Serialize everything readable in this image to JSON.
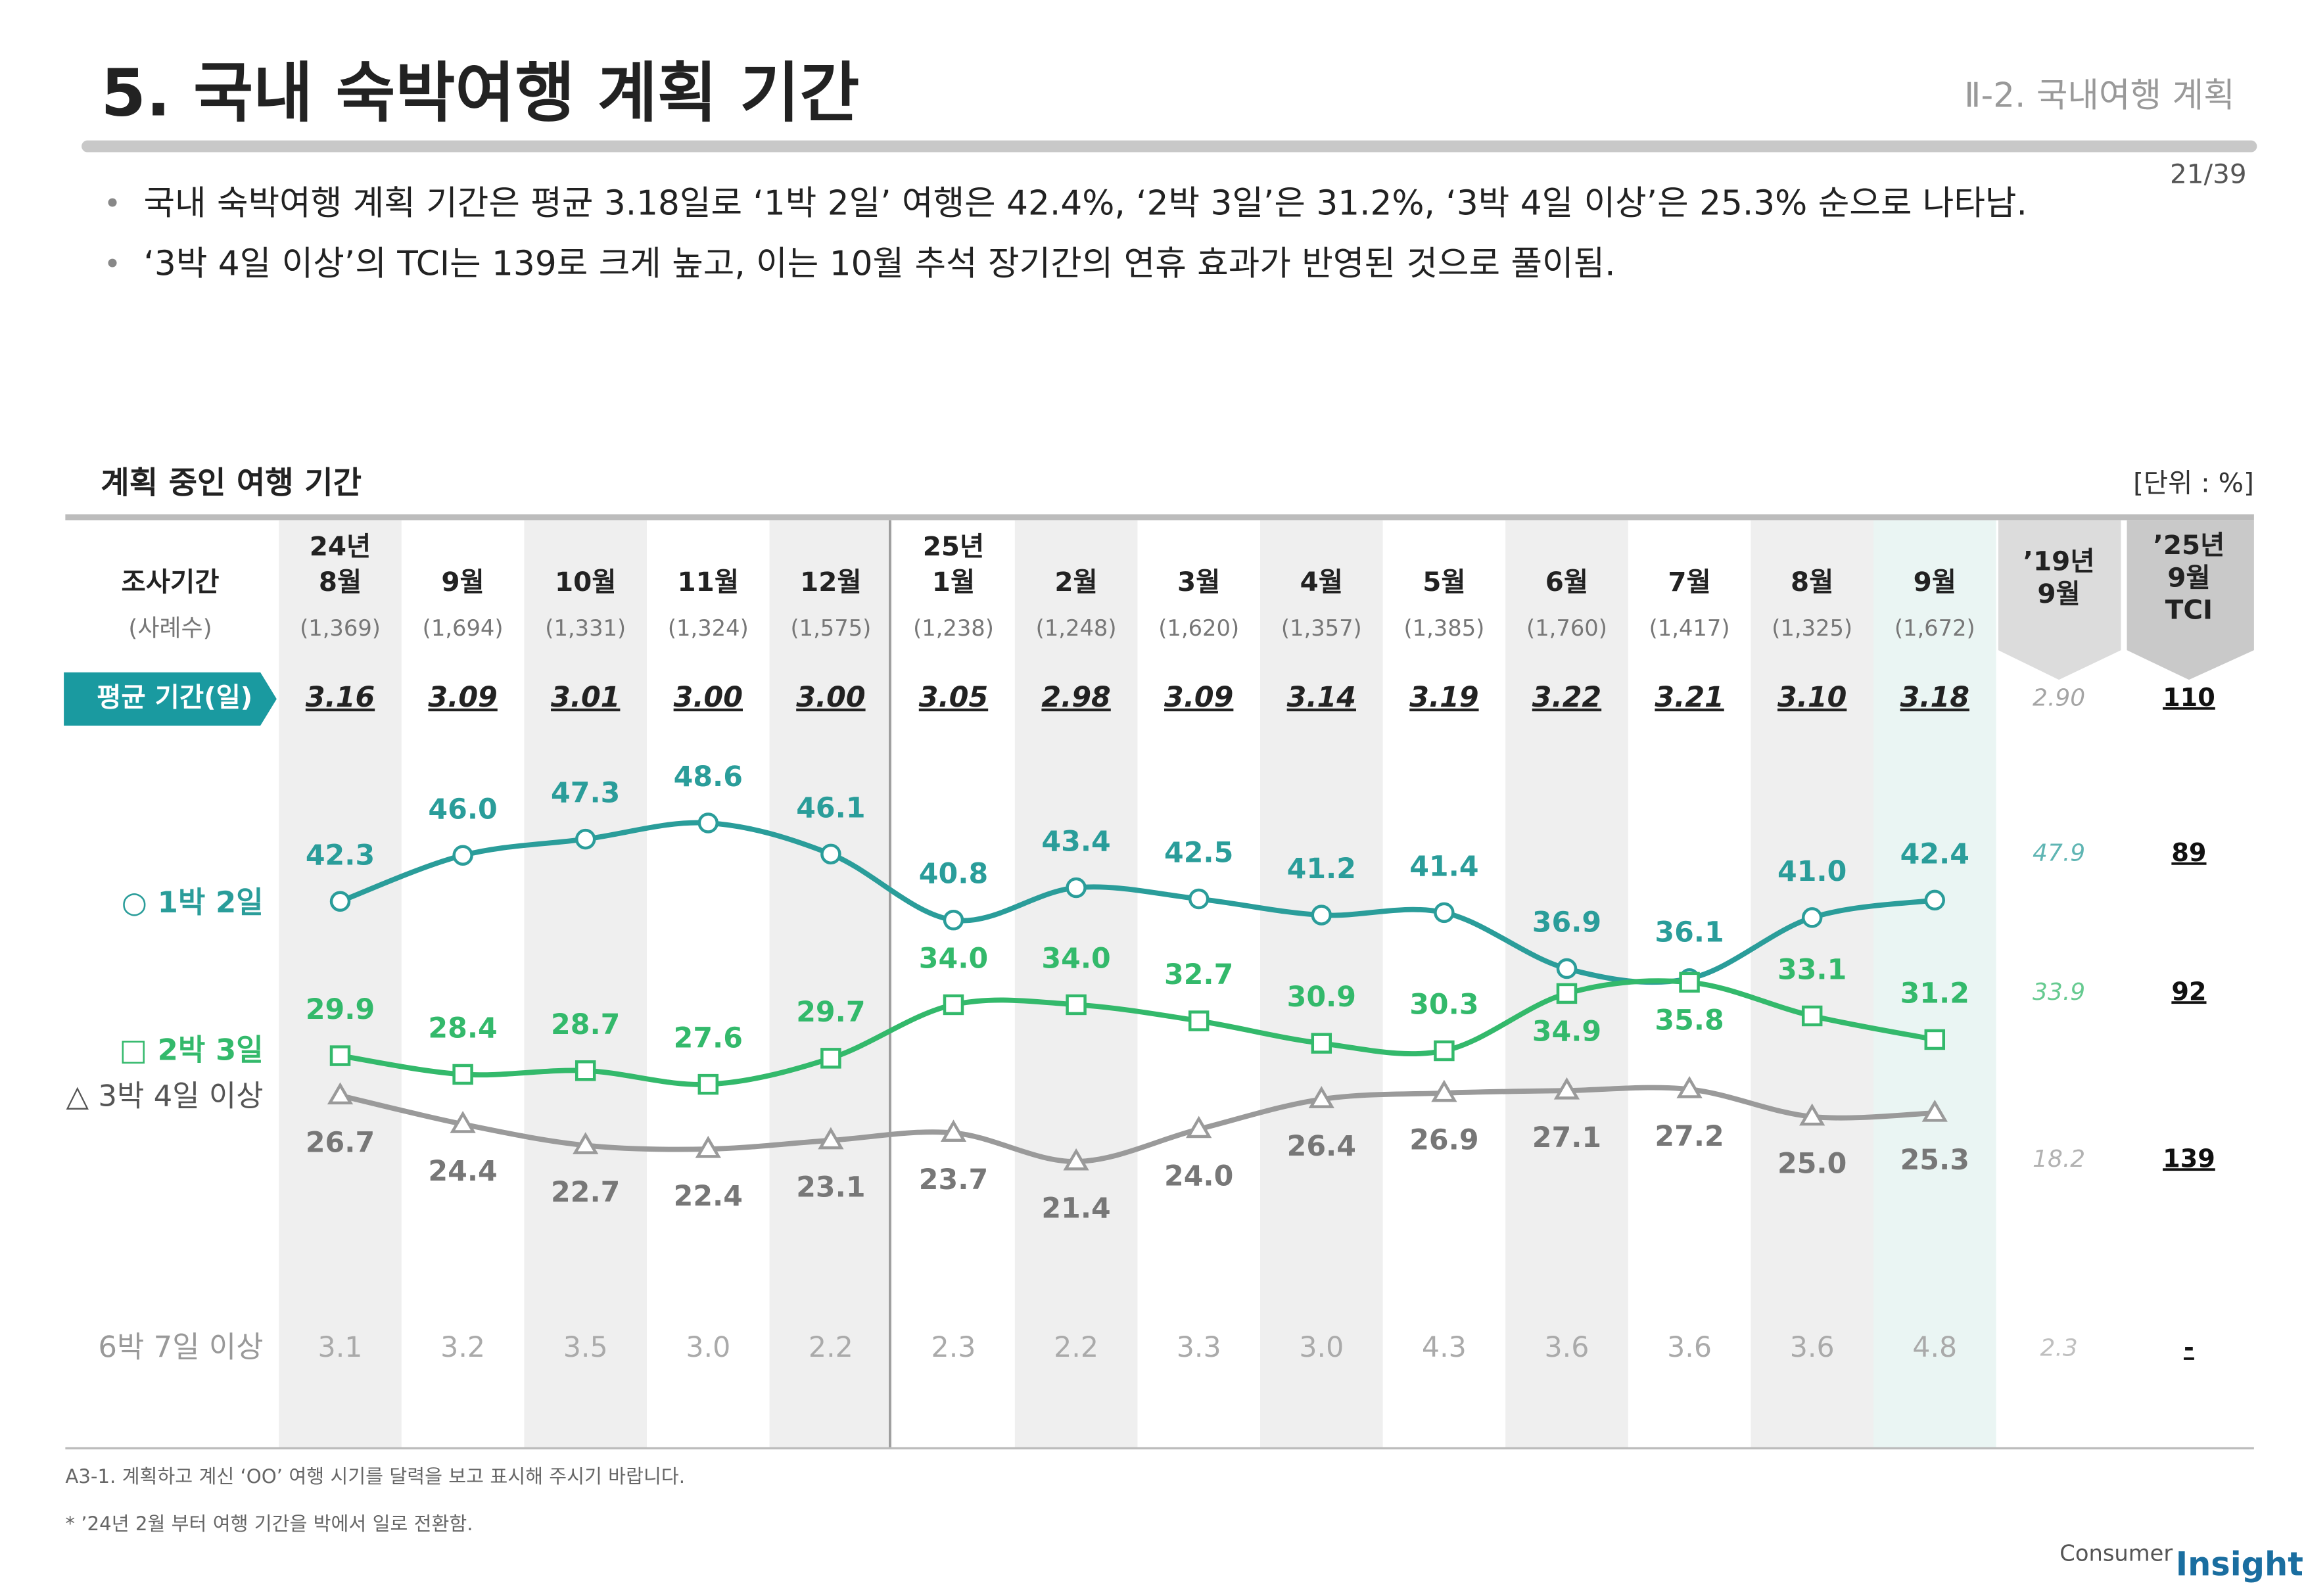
{
  "header": {
    "title": "5. 국내 숙박여행 계획 기간",
    "section": "Ⅱ-2. 국내여행 계획",
    "page": "21/39"
  },
  "bullets": [
    "국내 숙박여행 계획 기간은 평균 3.18일로 ‘1박 2일’ 여행은 42.4%, ‘2박 3일’은 31.2%, ‘3박 4일 이상’은 25.3% 순으로 나타남.",
    "‘3박 4일 이상’의 TCI는 139로 크게 높고, 이는 10월 추석 장기간의 연휴 효과가 반영된 것으로 풀이됨."
  ],
  "chart_data": {
    "type": "line",
    "title": "계획 중인 여행 기간",
    "unit": "[단위 : %]",
    "row_header": "조사기간",
    "sample_header": "(사례수)",
    "years": [
      "24년",
      null,
      null,
      null,
      null,
      "25년",
      null,
      null,
      null,
      null,
      null,
      null,
      null,
      null
    ],
    "categories": [
      "8월",
      "9월",
      "10월",
      "11월",
      "12월",
      "1월",
      "2월",
      "3월",
      "4월",
      "5월",
      "6월",
      "7월",
      "8월",
      "9월"
    ],
    "sample_sizes": [
      "(1,369)",
      "(1,694)",
      "(1,331)",
      "(1,324)",
      "(1,575)",
      "(1,238)",
      "(1,248)",
      "(1,620)",
      "(1,357)",
      "(1,385)",
      "(1,760)",
      "(1,417)",
      "(1,325)",
      "(1,672)"
    ],
    "average": {
      "name": "평균 기간(일)",
      "values": [
        "3.16",
        "3.09",
        "3.01",
        "3.00",
        "3.00",
        "3.05",
        "2.98",
        "3.09",
        "3.14",
        "3.19",
        "3.22",
        "3.21",
        "3.10",
        "3.18"
      ]
    },
    "ylim": [
      10,
      55
    ],
    "series": [
      {
        "name": "○ 1박 2일",
        "color": "#2a9d9a",
        "marker": "circle",
        "values": [
          42.3,
          46.0,
          47.3,
          48.6,
          46.1,
          40.8,
          43.4,
          42.5,
          41.2,
          41.4,
          36.9,
          36.1,
          41.0,
          42.4
        ],
        "value_labels": [
          "42.3",
          "46.0",
          "47.3",
          "48.6",
          "46.1",
          "40.8",
          "43.4",
          "42.5",
          "41.2",
          "41.4",
          "36.9",
          "36.1",
          "41.0",
          "42.4"
        ]
      },
      {
        "name": "□ 2박 3일",
        "color": "#33b96b",
        "marker": "square",
        "values": [
          29.9,
          28.4,
          28.7,
          27.6,
          29.7,
          34.0,
          34.0,
          32.7,
          30.9,
          30.3,
          34.9,
          35.8,
          33.1,
          31.2
        ],
        "value_labels": [
          "29.9",
          "28.4",
          "28.7",
          "27.6",
          "29.7",
          "34.0",
          "34.0",
          "32.7",
          "30.9",
          "30.3",
          "34.9",
          "35.8",
          "33.1",
          "31.2"
        ]
      },
      {
        "name": "△ 3박 4일 이상",
        "color": "#9a9a9a",
        "marker": "triangle",
        "values": [
          26.7,
          24.4,
          22.7,
          22.4,
          23.1,
          23.7,
          21.4,
          24.0,
          26.4,
          26.9,
          27.1,
          27.2,
          25.0,
          25.3
        ],
        "value_labels": [
          "26.7",
          "24.4",
          "22.7",
          "22.4",
          "23.1",
          "23.7",
          "21.4",
          "24.0",
          "26.4",
          "26.9",
          "27.1",
          "27.2",
          "25.0",
          "25.3"
        ]
      }
    ],
    "extra_row": {
      "name": "6박 7일 이상",
      "values": [
        "3.1",
        "3.2",
        "3.5",
        "3.0",
        "2.2",
        "2.3",
        "2.2",
        "3.3",
        "3.0",
        "4.3",
        "3.6",
        "3.6",
        "3.6",
        "4.8"
      ]
    },
    "comparison": [
      {
        "header": [
          "’19년",
          "9월"
        ],
        "values": [
          "2.90",
          "47.9",
          "33.9",
          "18.2",
          "2.3"
        ]
      },
      {
        "header": [
          "’25년",
          "9월",
          "TCI"
        ],
        "values": [
          "110",
          "89",
          "92",
          "139",
          "-"
        ]
      }
    ]
  },
  "footnotes": [
    "A3-1. 계획하고 계신 ‘OO’ 여행 시기를 달력을 보고 표시해 주시기 바랍니다.",
    "* ’24년 2월 부터 여행 기간을 박에서 일로 전환함."
  ],
  "logo": {
    "left": "Consumer",
    "right": "Insight"
  }
}
